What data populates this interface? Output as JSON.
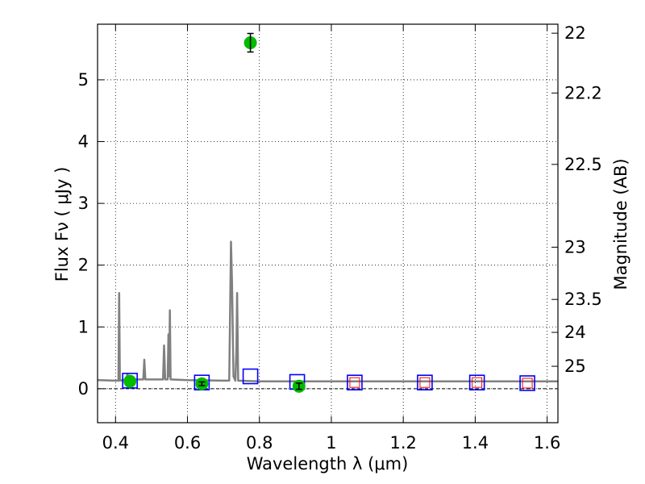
{
  "chart_data": {
    "type": "scatter",
    "xlabel": "Wavelength  λ (μm)",
    "ylabel": "Flux  Fν  ( μJy )",
    "y2label": "Magnitude (AB)",
    "xlim": [
      0.35,
      1.63
    ],
    "ylim": [
      -0.55,
      5.9
    ],
    "grid": true,
    "x_ticks": [
      {
        "v": 0.4,
        "label": "0.4"
      },
      {
        "v": 0.6,
        "label": "0.6"
      },
      {
        "v": 0.8,
        "label": "0.8"
      },
      {
        "v": 1.0,
        "label": "1"
      },
      {
        "v": 1.2,
        "label": "1.2"
      },
      {
        "v": 1.4,
        "label": "1.4"
      },
      {
        "v": 1.6,
        "label": "1.6"
      }
    ],
    "y_ticks": [
      {
        "v": 0,
        "label": "0"
      },
      {
        "v": 1,
        "label": "1"
      },
      {
        "v": 2,
        "label": "2"
      },
      {
        "v": 3,
        "label": "3"
      },
      {
        "v": 4,
        "label": "4"
      },
      {
        "v": 5,
        "label": "5"
      }
    ],
    "magnitude_ticks": [
      {
        "mag": 22,
        "label": "22"
      },
      {
        "mag": 22.2,
        "label": "22.2"
      },
      {
        "mag": 22.5,
        "label": "22.5"
      },
      {
        "mag": 23,
        "label": "23"
      },
      {
        "mag": 23.5,
        "label": "23.5"
      },
      {
        "mag": 24,
        "label": "24"
      },
      {
        "mag": 25,
        "label": "25"
      }
    ],
    "series": [
      {
        "kind": "line",
        "color": "#808080",
        "spectrum": [
          {
            "x": 0.35,
            "y": 0.14
          },
          {
            "x": 0.4,
            "y": 0.13
          },
          {
            "x": 0.408,
            "y": 0.13
          },
          {
            "x": 0.41,
            "y": 1.55
          },
          {
            "x": 0.412,
            "y": 0.13
          },
          {
            "x": 0.43,
            "y": 0.15
          },
          {
            "x": 0.433,
            "y": 0.24
          },
          {
            "x": 0.436,
            "y": 0.15
          },
          {
            "x": 0.477,
            "y": 0.15
          },
          {
            "x": 0.48,
            "y": 0.47
          },
          {
            "x": 0.483,
            "y": 0.15
          },
          {
            "x": 0.532,
            "y": 0.15
          },
          {
            "x": 0.535,
            "y": 0.7
          },
          {
            "x": 0.538,
            "y": 0.15
          },
          {
            "x": 0.545,
            "y": 0.15
          },
          {
            "x": 0.547,
            "y": 0.88
          },
          {
            "x": 0.549,
            "y": 0.2
          },
          {
            "x": 0.551,
            "y": 1.27
          },
          {
            "x": 0.553,
            "y": 0.15
          },
          {
            "x": 0.6,
            "y": 0.14
          },
          {
            "x": 0.7,
            "y": 0.13
          },
          {
            "x": 0.716,
            "y": 0.13
          },
          {
            "x": 0.721,
            "y": 2.38
          },
          {
            "x": 0.724,
            "y": 1.7
          },
          {
            "x": 0.728,
            "y": 0.2
          },
          {
            "x": 0.733,
            "y": 0.13
          },
          {
            "x": 0.736,
            "y": 0.6
          },
          {
            "x": 0.738,
            "y": 1.55
          },
          {
            "x": 0.741,
            "y": 0.13
          },
          {
            "x": 0.8,
            "y": 0.12
          },
          {
            "x": 1.0,
            "y": 0.12
          },
          {
            "x": 1.2,
            "y": 0.12
          },
          {
            "x": 1.4,
            "y": 0.12
          },
          {
            "x": 1.63,
            "y": 0.12
          }
        ]
      },
      {
        "kind": "model-photometry",
        "marker": "open-square",
        "color": "#0000ff",
        "x": [
          0.44,
          0.64,
          0.775,
          0.905,
          1.065,
          1.26,
          1.405,
          1.545
        ],
        "y": [
          0.13,
          0.1,
          0.2,
          0.11,
          0.1,
          0.1,
          0.1,
          0.09
        ]
      },
      {
        "kind": "model-photometry-inner",
        "marker": "open-square",
        "color": "#ff0000",
        "x": [
          1.065,
          1.26,
          1.405,
          1.545
        ],
        "y": [
          0.1,
          0.1,
          0.1,
          0.09
        ]
      },
      {
        "kind": "observed",
        "marker": "filled-circle",
        "color": "#00bb00",
        "points": [
          {
            "x": 0.44,
            "y": 0.12,
            "err": 0.0
          },
          {
            "x": 0.64,
            "y": 0.08,
            "err": 0.03
          },
          {
            "x": 0.775,
            "y": 5.6,
            "err": 0.15
          },
          {
            "x": 0.91,
            "y": 0.04,
            "err": 0.05
          }
        ]
      }
    ]
  }
}
